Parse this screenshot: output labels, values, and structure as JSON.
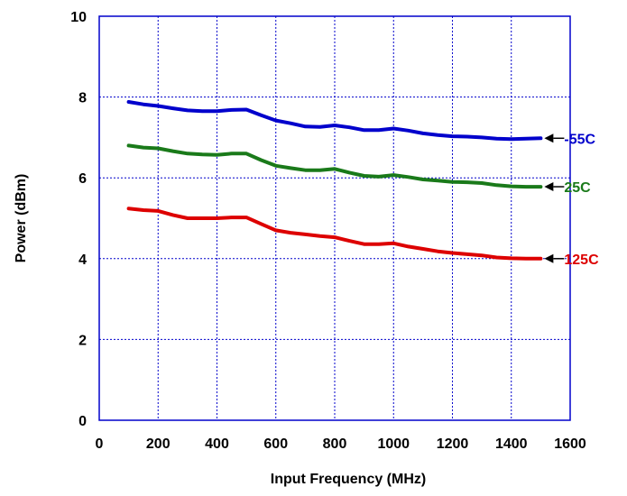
{
  "chart_data": {
    "type": "line",
    "xlabel": "Input  Frequency (MHz)",
    "ylabel": "Power (dBm)",
    "xlim": [
      0,
      1600
    ],
    "ylim": [
      0,
      10
    ],
    "xticks": [
      0,
      200,
      400,
      600,
      800,
      1000,
      1200,
      1400,
      1600
    ],
    "yticks": [
      0,
      2,
      4,
      6,
      8,
      10
    ],
    "grid": true,
    "series": [
      {
        "name": "-55C",
        "color": "#0000cc",
        "x": [
          100,
          150,
          200,
          250,
          300,
          350,
          400,
          450,
          500,
          550,
          600,
          650,
          700,
          750,
          800,
          850,
          900,
          950,
          1000,
          1050,
          1100,
          1150,
          1200,
          1250,
          1300,
          1350,
          1400,
          1450,
          1500
        ],
        "y": [
          7.88,
          7.82,
          7.78,
          7.72,
          7.67,
          7.65,
          7.65,
          7.68,
          7.69,
          7.55,
          7.42,
          7.35,
          7.27,
          7.26,
          7.3,
          7.25,
          7.18,
          7.18,
          7.22,
          7.17,
          7.1,
          7.06,
          7.03,
          7.02,
          7.0,
          6.97,
          6.96,
          6.97,
          6.98
        ]
      },
      {
        "name": "25C",
        "color": "#1a7a1a",
        "x": [
          100,
          150,
          200,
          250,
          300,
          350,
          400,
          450,
          500,
          550,
          600,
          650,
          700,
          750,
          800,
          850,
          900,
          950,
          1000,
          1050,
          1100,
          1150,
          1200,
          1250,
          1300,
          1350,
          1400,
          1450,
          1500
        ],
        "y": [
          6.8,
          6.75,
          6.73,
          6.66,
          6.6,
          6.58,
          6.57,
          6.6,
          6.6,
          6.44,
          6.3,
          6.24,
          6.19,
          6.19,
          6.22,
          6.13,
          6.05,
          6.03,
          6.07,
          6.02,
          5.96,
          5.93,
          5.9,
          5.89,
          5.87,
          5.82,
          5.79,
          5.78,
          5.78
        ]
      },
      {
        "name": "125C",
        "color": "#dd0000",
        "x": [
          100,
          150,
          200,
          250,
          300,
          350,
          400,
          450,
          500,
          550,
          600,
          650,
          700,
          750,
          800,
          850,
          900,
          950,
          1000,
          1050,
          1100,
          1150,
          1200,
          1250,
          1300,
          1350,
          1400,
          1450,
          1500
        ],
        "y": [
          5.24,
          5.2,
          5.18,
          5.08,
          5.0,
          5.0,
          5.0,
          5.02,
          5.02,
          4.86,
          4.7,
          4.64,
          4.6,
          4.56,
          4.53,
          4.44,
          4.36,
          4.36,
          4.38,
          4.3,
          4.24,
          4.18,
          4.14,
          4.11,
          4.08,
          4.03,
          4.01,
          4.0,
          4.0
        ]
      }
    ]
  }
}
